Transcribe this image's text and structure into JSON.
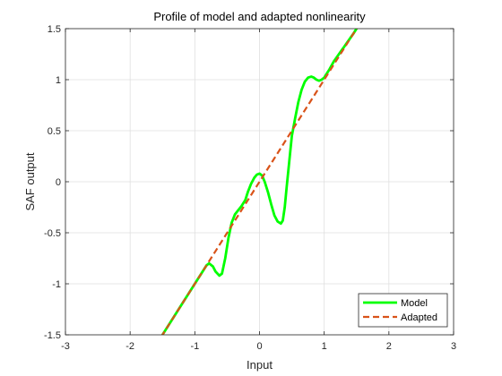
{
  "chart_data": {
    "type": "line",
    "title": "Profile of model and adapted nonlinearity",
    "xlabel": "Input",
    "ylabel": "SAF output",
    "xlim": [
      -3,
      3
    ],
    "ylim": [
      -1.5,
      1.5
    ],
    "xticks": [
      -3,
      -2,
      -1,
      0,
      1,
      2,
      3
    ],
    "xtick_labels": [
      "-3",
      "-2",
      "-1",
      "0",
      "1",
      "2",
      "3"
    ],
    "yticks": [
      -1.5,
      -1,
      -0.5,
      0,
      0.5,
      1,
      1.5
    ],
    "ytick_labels": [
      "-1.5",
      "-1",
      "-0.5",
      "0",
      "0.5",
      "1",
      "1.5"
    ],
    "grid": true,
    "legend_position": "bottom-right",
    "series": [
      {
        "name": "Model",
        "color": "#00ff00",
        "style": "solid",
        "x": [
          -1.52,
          -1.2,
          -1.0,
          -0.9,
          -0.82,
          -0.78,
          -0.72,
          -0.68,
          -0.62,
          -0.58,
          -0.53,
          -0.48,
          -0.43,
          -0.38,
          -0.33,
          -0.28,
          -0.22,
          -0.18,
          -0.13,
          -0.08,
          -0.04,
          0.0,
          0.04,
          0.08,
          0.13,
          0.18,
          0.23,
          0.28,
          0.33,
          0.36,
          0.39,
          0.42,
          0.46,
          0.5,
          0.55,
          0.6,
          0.65,
          0.7,
          0.75,
          0.8,
          0.84,
          0.88,
          0.92,
          0.96,
          1.0,
          1.04,
          1.08,
          1.15,
          1.25,
          1.35,
          1.45,
          1.52
        ],
        "y": [
          -1.52,
          -1.2,
          -1.0,
          -0.9,
          -0.82,
          -0.8,
          -0.83,
          -0.88,
          -0.92,
          -0.9,
          -0.75,
          -0.55,
          -0.4,
          -0.32,
          -0.28,
          -0.24,
          -0.18,
          -0.1,
          -0.02,
          0.04,
          0.07,
          0.08,
          0.06,
          0.0,
          -0.1,
          -0.22,
          -0.33,
          -0.39,
          -0.41,
          -0.38,
          -0.25,
          -0.05,
          0.2,
          0.45,
          0.62,
          0.78,
          0.9,
          0.98,
          1.02,
          1.03,
          1.02,
          1.0,
          0.99,
          1.0,
          1.02,
          1.06,
          1.1,
          1.18,
          1.27,
          1.36,
          1.45,
          1.52
        ]
      },
      {
        "name": "Adapted",
        "color": "#d95319",
        "style": "dashed",
        "x": [
          -1.52,
          1.52
        ],
        "y": [
          -1.52,
          1.52
        ]
      }
    ]
  }
}
